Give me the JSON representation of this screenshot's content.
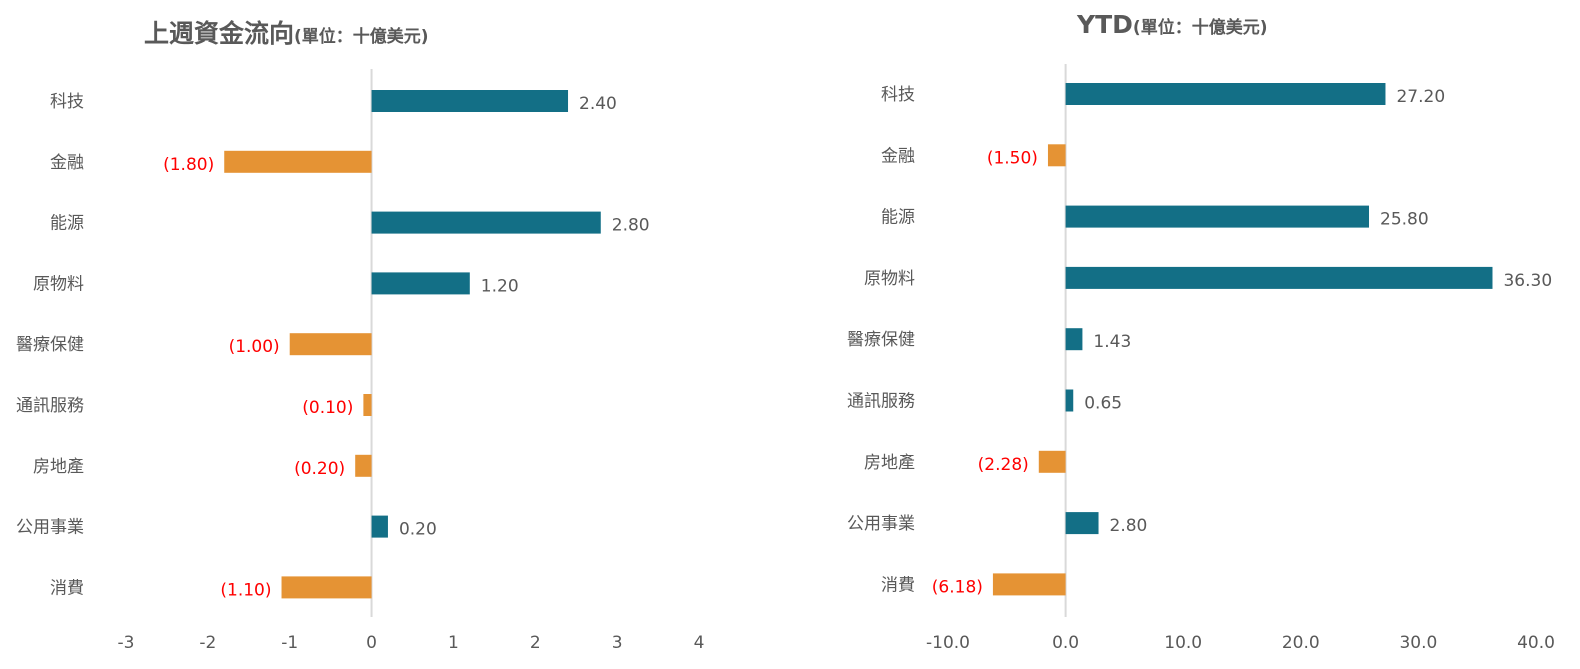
{
  "colors": {
    "positive": "#136f86",
    "negative": "#e59334",
    "negative_label": "#ff0000",
    "axis": "#d9d9d9",
    "text": "#595959"
  },
  "charts": {
    "left": {
      "title": "上週資金流向",
      "unit": "(單位：十億美元)"
    },
    "right": {
      "title": "YTD",
      "unit": "(單位：十億美元)"
    }
  },
  "chart_data": [
    {
      "type": "bar",
      "orientation": "horizontal",
      "title": "上週資金流向(單位：十億美元)",
      "categories": [
        "科技",
        "金融",
        "能源",
        "原物料",
        "醫療保健",
        "通訊服務",
        "房地產",
        "公用事業",
        "消費"
      ],
      "values": [
        2.4,
        -1.8,
        2.8,
        1.2,
        -1.0,
        -0.1,
        -0.2,
        0.2,
        -1.1
      ],
      "value_labels": [
        "2.40",
        "(1.80)",
        "2.80",
        "1.20",
        "(1.00)",
        "(0.10)",
        "(0.20)",
        "0.20",
        "(1.10)"
      ],
      "xlim": [
        -3,
        4
      ],
      "xticks": [
        -3,
        -2,
        -1,
        0,
        1,
        2,
        3,
        4
      ],
      "xtick_labels": [
        "-3",
        "-2",
        "-1",
        "0",
        "1",
        "2",
        "3",
        "4"
      ],
      "grid": false,
      "legend": "none"
    },
    {
      "type": "bar",
      "orientation": "horizontal",
      "title": "YTD(單位：十億美元)",
      "categories": [
        "科技",
        "金融",
        "能源",
        "原物料",
        "醫療保健",
        "通訊服務",
        "房地產",
        "公用事業",
        "消費"
      ],
      "values": [
        27.2,
        -1.5,
        25.8,
        36.3,
        1.43,
        0.65,
        -2.28,
        2.8,
        -6.18
      ],
      "value_labels": [
        "27.20",
        "(1.50)",
        "25.80",
        "36.30",
        "1.43",
        "0.65",
        "(2.28)",
        "2.80",
        "(6.18)"
      ],
      "xlim": [
        -10,
        40
      ],
      "xticks": [
        -10,
        0,
        10,
        20,
        30,
        40
      ],
      "xtick_labels": [
        "-10.0",
        "0.0",
        "10.0",
        "20.0",
        "30.0",
        "40.0"
      ],
      "grid": false,
      "legend": "none"
    }
  ]
}
